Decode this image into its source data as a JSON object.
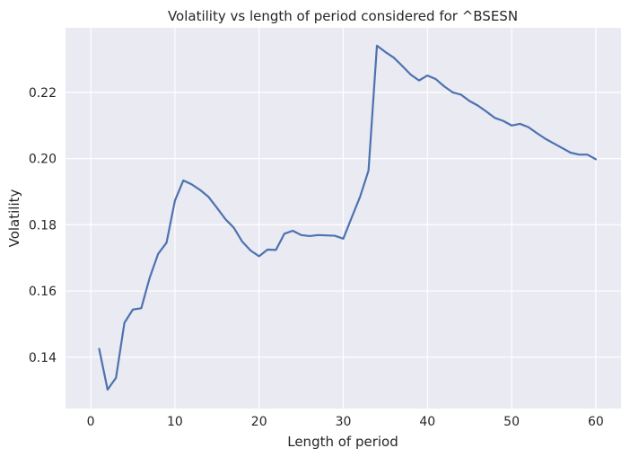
{
  "chart_data": {
    "type": "line",
    "title": "Volatility vs length of period considered for ^BSESN",
    "xlabel": "Length of period",
    "ylabel": "Volatility",
    "xlim": [
      -3,
      63
    ],
    "ylim": [
      0.1245,
      0.2395
    ],
    "xticks": [
      0,
      10,
      20,
      30,
      40,
      50,
      60
    ],
    "yticks": [
      0.14,
      0.16,
      0.18,
      0.2,
      0.22
    ],
    "xtick_labels": [
      "0",
      "10",
      "20",
      "30",
      "40",
      "50",
      "60"
    ],
    "ytick_labels": [
      "0.14",
      "0.16",
      "0.18",
      "0.20",
      "0.22"
    ],
    "grid": true,
    "legend": false,
    "background_color": "#eaeaf2",
    "grid_color": "#ffffff",
    "line_color": "#4c72b0",
    "x": [
      1,
      2,
      3,
      4,
      5,
      6,
      7,
      8,
      9,
      10,
      11,
      12,
      13,
      14,
      15,
      16,
      17,
      18,
      19,
      20,
      21,
      22,
      23,
      24,
      25,
      26,
      27,
      28,
      29,
      30,
      31,
      32,
      33,
      34,
      35,
      36,
      37,
      38,
      39,
      40,
      41,
      42,
      43,
      44,
      45,
      46,
      47,
      48,
      49,
      50,
      51,
      52,
      53,
      54,
      55,
      56,
      57,
      58,
      59,
      60
    ],
    "y": [
      0.1425,
      0.1302,
      0.1338,
      0.1504,
      0.1544,
      0.1548,
      0.164,
      0.1712,
      0.1746,
      0.1873,
      0.1934,
      0.1922,
      0.1905,
      0.1884,
      0.1851,
      0.1817,
      0.1791,
      0.1749,
      0.1722,
      0.1705,
      0.1725,
      0.1724,
      0.1773,
      0.1782,
      0.1769,
      0.1766,
      0.1769,
      0.1768,
      0.1767,
      0.1758,
      0.1822,
      0.1885,
      0.1964,
      0.2341,
      0.2322,
      0.2305,
      0.228,
      0.2254,
      0.2236,
      0.2251,
      0.224,
      0.2218,
      0.22,
      0.2193,
      0.2174,
      0.216,
      0.2142,
      0.2123,
      0.2114,
      0.21,
      0.2105,
      0.2095,
      0.2077,
      0.206,
      0.2046,
      0.2032,
      0.2018,
      0.2012,
      0.2012,
      0.1998
    ]
  }
}
